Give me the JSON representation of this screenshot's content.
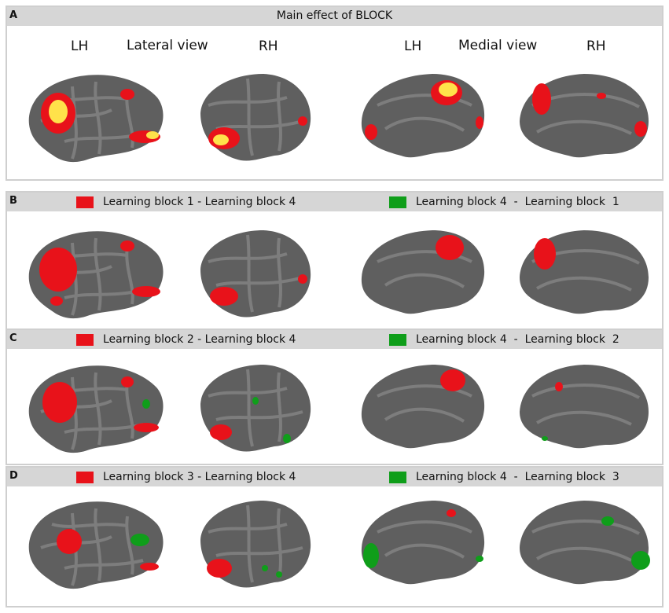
{
  "panelA": {
    "letter": "A",
    "title": "Main effect of BLOCK",
    "lateral": {
      "lh": "LH",
      "title": "Lateral view",
      "rh": "RH"
    },
    "medial": {
      "lh": "LH",
      "title": "Medial view",
      "rh": "RH"
    }
  },
  "panelB": {
    "letter": "B",
    "red_label": "Learning block 1 - Learning block 4",
    "green_label": "Learning block 4  -  Learning block  1"
  },
  "panelC": {
    "letter": "C",
    "red_label": "Learning block 2 - Learning block 4",
    "green_label": "Learning block 4  -  Learning block  2"
  },
  "panelD": {
    "letter": "D",
    "red_label": "Learning block 3 - Learning block 4",
    "green_label": "Learning block 4  -  Learning block  3"
  },
  "colors": {
    "red": "#e8121a",
    "green": "#0f9e1a",
    "yellow": "#ffe24a",
    "cortex": "#5f5f5f",
    "sulci": "#7d7d7d",
    "header": "#d6d6d6"
  }
}
